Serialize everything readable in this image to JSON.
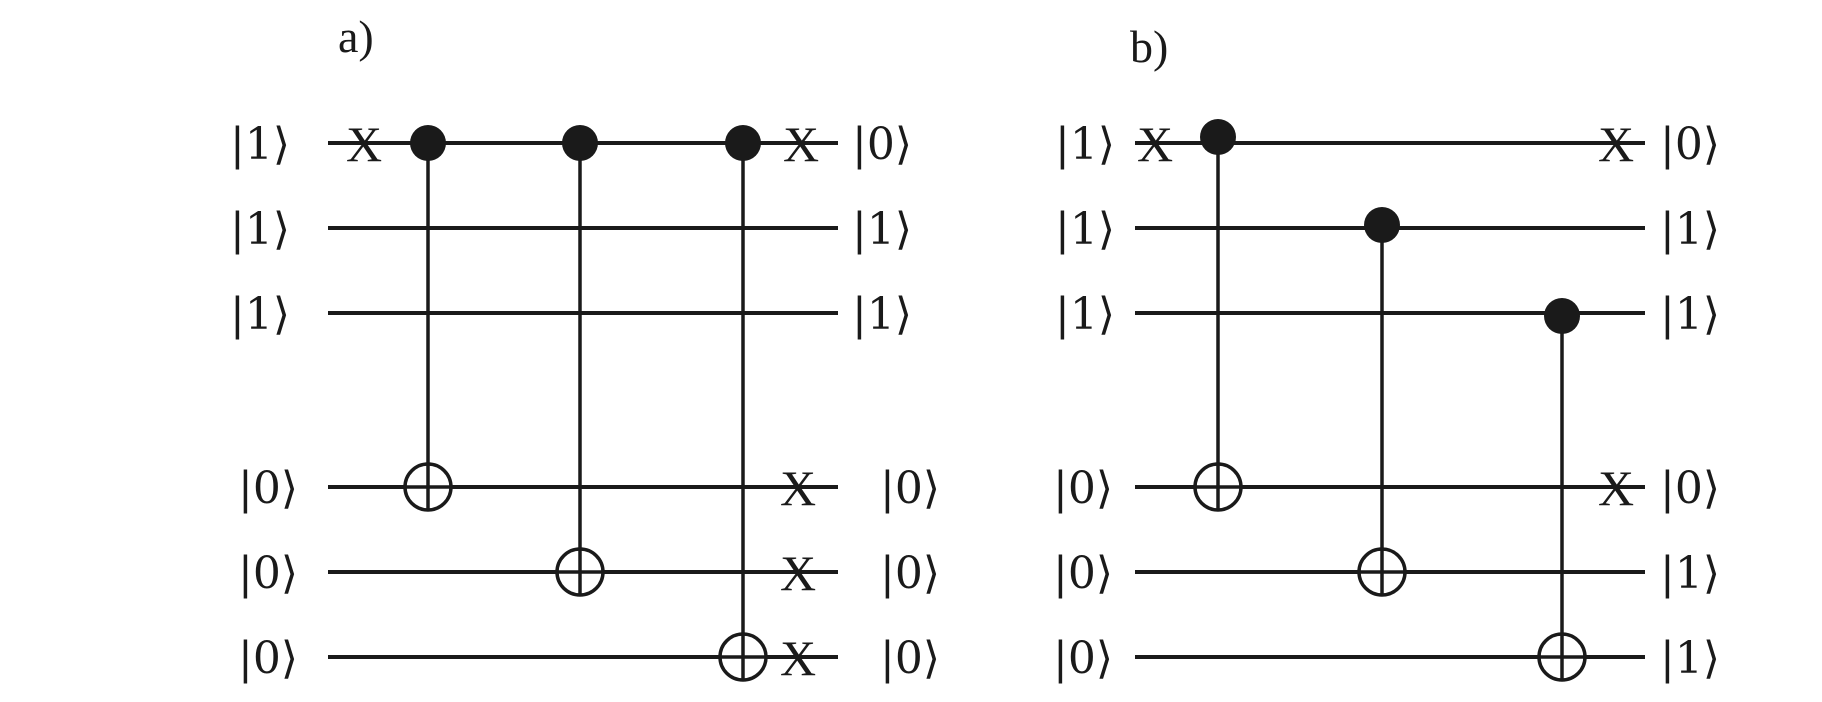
{
  "panels": [
    {
      "label": "a)",
      "inputs": [
        "|1⟩",
        "|1⟩",
        "|1⟩",
        "|0⟩",
        "|0⟩",
        "|0⟩"
      ],
      "outputs": [
        "|0⟩",
        "|1⟩",
        "|1⟩",
        "|0⟩",
        "|0⟩",
        "|0⟩"
      ],
      "x_symbol": "X"
    },
    {
      "label": "b)",
      "inputs": [
        "|1⟩",
        "|1⟩",
        "|1⟩",
        "|0⟩",
        "|0⟩",
        "|0⟩"
      ],
      "outputs": [
        "|0⟩",
        "|1⟩",
        "|1⟩",
        "|0⟩",
        "|1⟩",
        "|1⟩"
      ],
      "x_symbol": "X"
    }
  ]
}
